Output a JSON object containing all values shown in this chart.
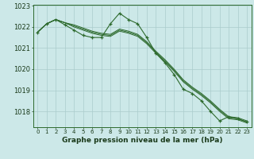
{
  "hours": [
    0,
    1,
    2,
    3,
    4,
    5,
    6,
    7,
    8,
    9,
    10,
    11,
    12,
    13,
    14,
    15,
    16,
    17,
    18,
    19,
    20,
    21,
    22,
    23
  ],
  "smooth_series": [
    [
      1021.75,
      1022.15,
      1022.35,
      1022.2,
      1022.1,
      1021.95,
      1021.8,
      1021.7,
      1021.65,
      1021.9,
      1021.8,
      1021.65,
      1021.3,
      1020.85,
      1020.45,
      1020.0,
      1019.5,
      1019.15,
      1018.85,
      1018.5,
      1018.1,
      1017.75,
      1017.7,
      1017.55
    ],
    [
      1021.75,
      1022.15,
      1022.35,
      1022.2,
      1022.05,
      1021.9,
      1021.75,
      1021.65,
      1021.6,
      1021.85,
      1021.75,
      1021.6,
      1021.25,
      1020.8,
      1020.4,
      1019.95,
      1019.45,
      1019.1,
      1018.8,
      1018.45,
      1018.05,
      1017.7,
      1017.65,
      1017.5
    ],
    [
      1021.75,
      1022.15,
      1022.35,
      1022.2,
      1022.0,
      1021.85,
      1021.7,
      1021.6,
      1021.55,
      1021.8,
      1021.7,
      1021.55,
      1021.2,
      1020.75,
      1020.35,
      1019.9,
      1019.4,
      1019.05,
      1018.75,
      1018.4,
      1018.0,
      1017.65,
      1017.6,
      1017.45
    ]
  ],
  "marked_series": [
    1021.75,
    1022.15,
    1022.35,
    1022.1,
    1021.85,
    1021.6,
    1021.5,
    1021.5,
    1022.15,
    1022.65,
    1022.35,
    1022.15,
    1021.5,
    1020.75,
    1020.3,
    1019.75,
    1019.05,
    1018.85,
    1018.5,
    1018.0,
    1017.55,
    1017.75,
    1017.65,
    1017.5
  ],
  "ylim": [
    1017.25,
    1023.05
  ],
  "yticks": [
    1018,
    1019,
    1020,
    1021,
    1022,
    1023
  ],
  "bg_color": "#cce8e8",
  "line_color": "#2d6a2d",
  "grid_color": "#aacccc",
  "xlabel": "Graphe pression niveau de la mer (hPa)"
}
